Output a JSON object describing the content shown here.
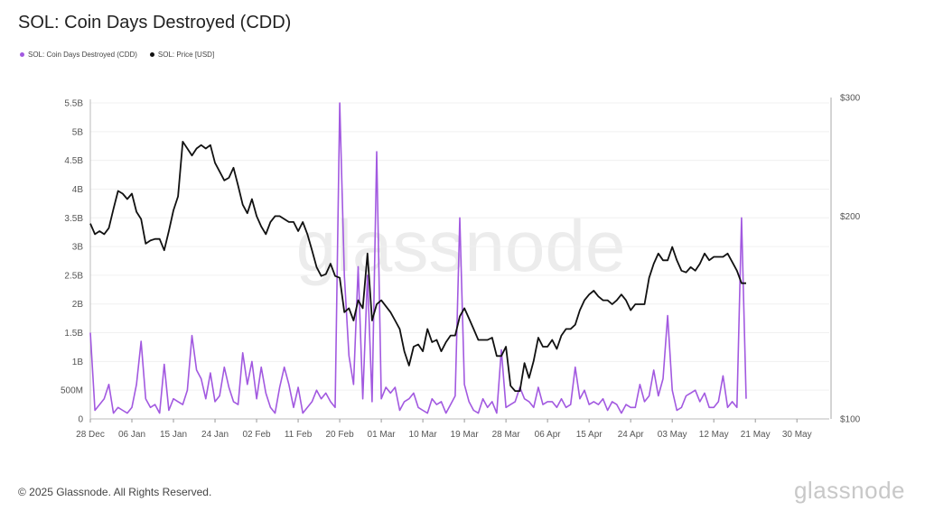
{
  "title": "SOL: Coin Days Destroyed (CDD)",
  "legend": [
    {
      "label": "SOL: Coin Days Destroyed (CDD)",
      "color": "#a259e0"
    },
    {
      "label": "SOL: Price [USD]",
      "color": "#111111"
    }
  ],
  "watermark": "glassnode",
  "footer": "© 2025 Glassnode. All Rights Reserved.",
  "brand": "glassnode",
  "chart_data": {
    "type": "line",
    "x_ticks": [
      "28 Dec",
      "06 Jan",
      "15 Jan",
      "24 Jan",
      "02 Feb",
      "11 Feb",
      "20 Feb",
      "01 Mar",
      "10 Mar",
      "19 Mar",
      "28 Mar",
      "06 Apr",
      "15 Apr",
      "24 Apr",
      "03 May",
      "12 May",
      "21 May",
      "30 May"
    ],
    "y_left_ticks": [
      "0",
      "500M",
      "1B",
      "1.5B",
      "2B",
      "2.5B",
      "3B",
      "3.5B",
      "4B",
      "4.5B",
      "5B",
      "5.5B"
    ],
    "y_left_range": [
      0,
      5.5
    ],
    "y_right_ticks": [
      "$100",
      "$200",
      "$300"
    ],
    "y_right_range": [
      100,
      300
    ],
    "y_right_scale": "log",
    "x_range_days": [
      0,
      160
    ],
    "series": [
      {
        "name": "SOL: Coin Days Destroyed (CDD)",
        "axis": "left",
        "unit": "B",
        "color": "#a259e0",
        "points": [
          [
            0,
            1.5
          ],
          [
            1,
            0.15
          ],
          [
            2,
            0.25
          ],
          [
            3,
            0.35
          ],
          [
            4,
            0.6
          ],
          [
            5,
            0.1
          ],
          [
            6,
            0.2
          ],
          [
            7,
            0.15
          ],
          [
            8,
            0.1
          ],
          [
            9,
            0.2
          ],
          [
            10,
            0.6
          ],
          [
            11,
            1.35
          ],
          [
            12,
            0.35
          ],
          [
            13,
            0.2
          ],
          [
            14,
            0.25
          ],
          [
            15,
            0.1
          ],
          [
            16,
            0.95
          ],
          [
            17,
            0.15
          ],
          [
            18,
            0.35
          ],
          [
            19,
            0.3
          ],
          [
            20,
            0.25
          ],
          [
            21,
            0.5
          ],
          [
            22,
            1.45
          ],
          [
            23,
            0.85
          ],
          [
            24,
            0.7
          ],
          [
            25,
            0.35
          ],
          [
            26,
            0.8
          ],
          [
            27,
            0.3
          ],
          [
            28,
            0.4
          ],
          [
            29,
            0.9
          ],
          [
            30,
            0.55
          ],
          [
            31,
            0.3
          ],
          [
            32,
            0.25
          ],
          [
            33,
            1.15
          ],
          [
            34,
            0.6
          ],
          [
            35,
            1.0
          ],
          [
            36,
            0.35
          ],
          [
            37,
            0.9
          ],
          [
            38,
            0.45
          ],
          [
            39,
            0.2
          ],
          [
            40,
            0.1
          ],
          [
            41,
            0.55
          ],
          [
            42,
            0.9
          ],
          [
            43,
            0.6
          ],
          [
            44,
            0.2
          ],
          [
            45,
            0.55
          ],
          [
            46,
            0.1
          ],
          [
            47,
            0.2
          ],
          [
            48,
            0.3
          ],
          [
            49,
            0.5
          ],
          [
            50,
            0.35
          ],
          [
            51,
            0.45
          ],
          [
            52,
            0.3
          ],
          [
            53,
            0.2
          ],
          [
            54,
            5.5
          ],
          [
            55,
            2.5
          ],
          [
            56,
            1.1
          ],
          [
            57,
            0.6
          ],
          [
            58,
            2.65
          ],
          [
            59,
            0.35
          ],
          [
            60,
            2.5
          ],
          [
            61,
            0.3
          ],
          [
            62,
            4.65
          ],
          [
            63,
            0.35
          ],
          [
            64,
            0.55
          ],
          [
            65,
            0.45
          ],
          [
            66,
            0.55
          ],
          [
            67,
            0.15
          ],
          [
            68,
            0.3
          ],
          [
            69,
            0.35
          ],
          [
            70,
            0.45
          ],
          [
            71,
            0.2
          ],
          [
            72,
            0.15
          ],
          [
            73,
            0.1
          ],
          [
            74,
            0.35
          ],
          [
            75,
            0.25
          ],
          [
            76,
            0.3
          ],
          [
            77,
            0.1
          ],
          [
            78,
            0.25
          ],
          [
            79,
            0.4
          ],
          [
            80,
            3.5
          ],
          [
            81,
            0.6
          ],
          [
            82,
            0.3
          ],
          [
            83,
            0.15
          ],
          [
            84,
            0.1
          ],
          [
            85,
            0.35
          ],
          [
            86,
            0.2
          ],
          [
            87,
            0.3
          ],
          [
            88,
            0.1
          ],
          [
            89,
            1.2
          ],
          [
            90,
            0.2
          ],
          [
            91,
            0.25
          ],
          [
            92,
            0.3
          ],
          [
            93,
            0.55
          ],
          [
            94,
            0.35
          ],
          [
            95,
            0.3
          ],
          [
            96,
            0.2
          ],
          [
            97,
            0.55
          ],
          [
            98,
            0.25
          ],
          [
            99,
            0.3
          ],
          [
            100,
            0.3
          ],
          [
            101,
            0.2
          ],
          [
            102,
            0.35
          ],
          [
            103,
            0.2
          ],
          [
            104,
            0.25
          ],
          [
            105,
            0.9
          ],
          [
            106,
            0.35
          ],
          [
            107,
            0.5
          ],
          [
            108,
            0.25
          ],
          [
            109,
            0.3
          ],
          [
            110,
            0.25
          ],
          [
            111,
            0.35
          ],
          [
            112,
            0.15
          ],
          [
            113,
            0.3
          ],
          [
            114,
            0.25
          ],
          [
            115,
            0.1
          ],
          [
            116,
            0.25
          ],
          [
            117,
            0.2
          ],
          [
            118,
            0.2
          ],
          [
            119,
            0.6
          ],
          [
            120,
            0.3
          ],
          [
            121,
            0.4
          ],
          [
            122,
            0.85
          ],
          [
            123,
            0.4
          ],
          [
            124,
            0.7
          ],
          [
            125,
            1.8
          ],
          [
            126,
            0.5
          ],
          [
            127,
            0.15
          ],
          [
            128,
            0.2
          ],
          [
            129,
            0.4
          ],
          [
            130,
            0.45
          ],
          [
            131,
            0.5
          ],
          [
            132,
            0.3
          ],
          [
            133,
            0.45
          ],
          [
            134,
            0.2
          ],
          [
            135,
            0.2
          ],
          [
            136,
            0.3
          ],
          [
            137,
            0.75
          ],
          [
            138,
            0.2
          ],
          [
            139,
            0.3
          ],
          [
            140,
            0.2
          ],
          [
            141,
            3.5
          ],
          [
            142,
            0.35
          ]
        ]
      },
      {
        "name": "SOL: Price [USD]",
        "axis": "right",
        "unit": "USD",
        "color": "#111111",
        "points": [
          [
            0,
            195
          ],
          [
            1,
            188
          ],
          [
            2,
            190
          ],
          [
            3,
            188
          ],
          [
            4,
            192
          ],
          [
            5,
            205
          ],
          [
            6,
            218
          ],
          [
            7,
            216
          ],
          [
            8,
            212
          ],
          [
            9,
            216
          ],
          [
            10,
            203
          ],
          [
            11,
            198
          ],
          [
            12,
            182
          ],
          [
            13,
            184
          ],
          [
            14,
            185
          ],
          [
            15,
            185
          ],
          [
            16,
            178
          ],
          [
            17,
            190
          ],
          [
            18,
            204
          ],
          [
            19,
            214
          ],
          [
            20,
            258
          ],
          [
            21,
            252
          ],
          [
            22,
            246
          ],
          [
            23,
            252
          ],
          [
            24,
            255
          ],
          [
            25,
            252
          ],
          [
            26,
            255
          ],
          [
            27,
            240
          ],
          [
            28,
            233
          ],
          [
            29,
            226
          ],
          [
            30,
            228
          ],
          [
            31,
            236
          ],
          [
            32,
            222
          ],
          [
            33,
            208
          ],
          [
            34,
            202
          ],
          [
            35,
            212
          ],
          [
            36,
            200
          ],
          [
            37,
            193
          ],
          [
            38,
            188
          ],
          [
            39,
            196
          ],
          [
            40,
            200
          ],
          [
            41,
            200
          ],
          [
            42,
            198
          ],
          [
            43,
            196
          ],
          [
            44,
            196
          ],
          [
            45,
            190
          ],
          [
            46,
            196
          ],
          [
            47,
            188
          ],
          [
            48,
            178
          ],
          [
            49,
            168
          ],
          [
            50,
            163
          ],
          [
            51,
            164
          ],
          [
            52,
            170
          ],
          [
            53,
            163
          ],
          [
            54,
            162
          ],
          [
            55,
            144
          ],
          [
            56,
            146
          ],
          [
            57,
            140
          ],
          [
            58,
            150
          ],
          [
            59,
            146
          ],
          [
            60,
            176
          ],
          [
            61,
            140
          ],
          [
            62,
            148
          ],
          [
            63,
            150
          ],
          [
            64,
            147
          ],
          [
            65,
            144
          ],
          [
            66,
            140
          ],
          [
            67,
            136
          ],
          [
            68,
            126
          ],
          [
            69,
            120
          ],
          [
            70,
            128
          ],
          [
            71,
            129
          ],
          [
            72,
            126
          ],
          [
            73,
            136
          ],
          [
            74,
            130
          ],
          [
            75,
            131
          ],
          [
            76,
            126
          ],
          [
            77,
            130
          ],
          [
            78,
            133
          ],
          [
            79,
            133
          ],
          [
            80,
            142
          ],
          [
            81,
            146
          ],
          [
            82,
            141
          ],
          [
            83,
            136
          ],
          [
            84,
            131
          ],
          [
            85,
            131
          ],
          [
            86,
            131
          ],
          [
            87,
            132
          ],
          [
            88,
            124
          ],
          [
            89,
            124
          ],
          [
            90,
            128
          ],
          [
            91,
            112
          ],
          [
            92,
            110
          ],
          [
            93,
            110
          ],
          [
            94,
            121
          ],
          [
            95,
            115
          ],
          [
            96,
            122
          ],
          [
            97,
            132
          ],
          [
            98,
            128
          ],
          [
            99,
            128
          ],
          [
            100,
            131
          ],
          [
            101,
            127
          ],
          [
            102,
            133
          ],
          [
            103,
            136
          ],
          [
            104,
            136
          ],
          [
            105,
            138
          ],
          [
            106,
            145
          ],
          [
            107,
            150
          ],
          [
            108,
            153
          ],
          [
            109,
            155
          ],
          [
            110,
            152
          ],
          [
            111,
            150
          ],
          [
            112,
            150
          ],
          [
            113,
            148
          ],
          [
            114,
            150
          ],
          [
            115,
            153
          ],
          [
            116,
            150
          ],
          [
            117,
            145
          ],
          [
            118,
            148
          ],
          [
            119,
            148
          ],
          [
            120,
            148
          ],
          [
            121,
            162
          ],
          [
            122,
            170
          ],
          [
            123,
            176
          ],
          [
            124,
            172
          ],
          [
            125,
            172
          ],
          [
            126,
            180
          ],
          [
            127,
            172
          ],
          [
            128,
            166
          ],
          [
            129,
            165
          ],
          [
            130,
            168
          ],
          [
            131,
            166
          ],
          [
            132,
            170
          ],
          [
            133,
            176
          ],
          [
            134,
            172
          ],
          [
            135,
            174
          ],
          [
            136,
            174
          ],
          [
            137,
            174
          ],
          [
            138,
            176
          ],
          [
            139,
            171
          ],
          [
            140,
            166
          ],
          [
            141,
            159
          ],
          [
            142,
            159
          ]
        ]
      }
    ]
  }
}
